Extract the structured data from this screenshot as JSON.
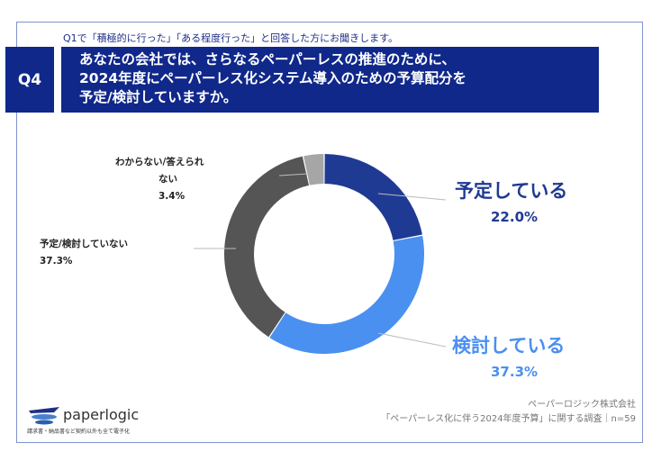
{
  "header": {
    "subtitle": "Q1で「積極的に行った」「ある程度行った」と回答した方にお聞きします。",
    "question_no": "Q4",
    "title_lines": [
      "あなたの会社では、さらなるペーパーレスの推進のために、",
      "2024年度にペーパーレス化システム導入のための予算配分を",
      "予定/検討していますか。"
    ]
  },
  "chart_data": {
    "type": "pie",
    "donut": true,
    "start": "top",
    "direction": "clockwise",
    "slices": [
      {
        "label": "予定している",
        "value": 22.0,
        "display": "22.0%",
        "color": "#1f3a93"
      },
      {
        "label": "検討している",
        "value": 37.3,
        "display": "37.3%",
        "color": "#4a90f0"
      },
      {
        "label": "予定/検討していない",
        "value": 37.3,
        "display": "37.3%",
        "color": "#555555"
      },
      {
        "label_lines": [
          "わからない/答えられ",
          "ない"
        ],
        "value": 3.4,
        "display": "3.4%",
        "color": "#a6a6a6"
      }
    ]
  },
  "footer": {
    "company": "ペーパーロジック株式会社",
    "survey": "「ペーパーレス化に伴う2024年度予算」に関する調査｜n=59"
  },
  "logo": {
    "name": "paperlogic",
    "tagline": "請求書・納品書など契約以外も全て電子化"
  }
}
